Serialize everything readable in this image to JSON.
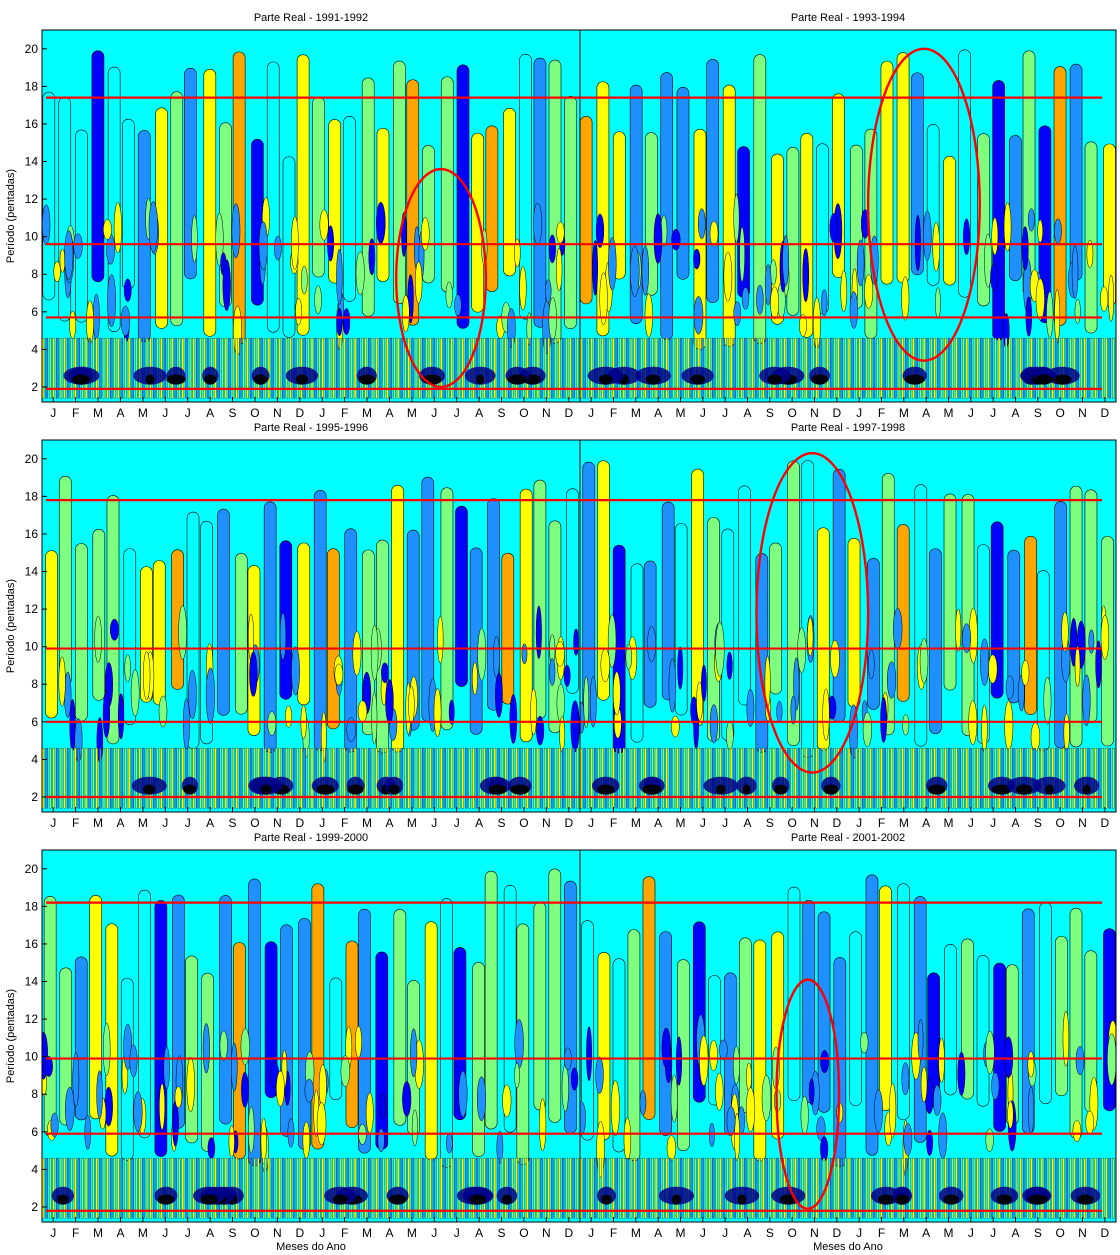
{
  "figure": {
    "xlabel": "Meses do Ano",
    "ylabel": "Período (pentadas)"
  },
  "colors": {
    "scale": [
      "#00008B",
      "#0000FF",
      "#1E90FF",
      "#00FFFF",
      "#7FFF7F",
      "#FFFF00",
      "#FFA500",
      "#FF0000",
      "#8B0000"
    ],
    "contour": "#000000",
    "annotation": "#FF0000"
  },
  "chart_data": [
    {
      "type": "heatmap",
      "title": "Parte Real - 1991-1992",
      "ylabel": "Período (pentadas)",
      "xlabel": "",
      "x_ticks": [
        "J",
        "F",
        "M",
        "A",
        "M",
        "J",
        "J",
        "A",
        "S",
        "O",
        "N",
        "D",
        "J",
        "F",
        "M",
        "A",
        "M",
        "J",
        "J",
        "A",
        "S",
        "O",
        "N",
        "D"
      ],
      "y_ticks": [
        2,
        4,
        6,
        8,
        10,
        12,
        14,
        16,
        18,
        20
      ],
      "ylim": [
        1.2,
        21
      ],
      "hlines": [
        1.9,
        5.7,
        9.6,
        17.4
      ],
      "ellipse": {
        "x_center": 17.3,
        "y_center": 7.8,
        "x_halfwidth": 2.0,
        "y_halfwidth": 5.8
      }
    },
    {
      "type": "heatmap",
      "title": "Parte Real - 1993-1994",
      "ylabel": "",
      "xlabel": "",
      "x_ticks": [
        "J",
        "F",
        "M",
        "A",
        "M",
        "J",
        "J",
        "A",
        "S",
        "O",
        "N",
        "D",
        "J",
        "F",
        "M",
        "A",
        "M",
        "J",
        "J",
        "A",
        "S",
        "O",
        "N",
        "D"
      ],
      "y_ticks": [],
      "ylim": [
        1.2,
        21
      ],
      "hlines": [
        1.9,
        5.7,
        9.6,
        17.4
      ],
      "ellipse": {
        "x_center": 14.9,
        "y_center": 11.7,
        "x_halfwidth": 2.5,
        "y_halfwidth": 8.3
      }
    },
    {
      "type": "heatmap",
      "title": "Parte Real - 1995-1996",
      "ylabel": "Período (pentadas)",
      "xlabel": "",
      "x_ticks": [
        "J",
        "F",
        "M",
        "A",
        "M",
        "J",
        "J",
        "A",
        "S",
        "O",
        "N",
        "D",
        "J",
        "F",
        "M",
        "A",
        "M",
        "J",
        "J",
        "A",
        "S",
        "O",
        "N",
        "D"
      ],
      "y_ticks": [
        2,
        4,
        6,
        8,
        10,
        12,
        14,
        16,
        18,
        20
      ],
      "ylim": [
        1.2,
        21
      ],
      "hlines": [
        2.0,
        6.0,
        9.9,
        17.8
      ],
      "ellipse": null
    },
    {
      "type": "heatmap",
      "title": "Parte Real - 1997-1998",
      "ylabel": "",
      "xlabel": "",
      "x_ticks": [
        "J",
        "F",
        "M",
        "A",
        "M",
        "J",
        "J",
        "A",
        "S",
        "O",
        "N",
        "D",
        "J",
        "F",
        "M",
        "A",
        "M",
        "J",
        "J",
        "A",
        "S",
        "O",
        "N",
        "D"
      ],
      "y_ticks": [],
      "ylim": [
        1.2,
        21
      ],
      "hlines": [
        2.0,
        6.0,
        9.9,
        17.8
      ],
      "ellipse": {
        "x_center": 9.9,
        "y_center": 11.8,
        "x_halfwidth": 2.5,
        "y_halfwidth": 8.5
      }
    },
    {
      "type": "heatmap",
      "title": "Parte Real - 1999-2000",
      "ylabel": "Período (pentadas)",
      "xlabel": "Meses do Ano",
      "x_ticks": [
        "J",
        "F",
        "M",
        "A",
        "M",
        "J",
        "J",
        "A",
        "S",
        "O",
        "N",
        "D",
        "J",
        "F",
        "M",
        "A",
        "M",
        "J",
        "J",
        "A",
        "S",
        "O",
        "N",
        "D"
      ],
      "y_ticks": [
        2,
        4,
        6,
        8,
        10,
        12,
        14,
        16,
        18,
        20
      ],
      "ylim": [
        1.2,
        21
      ],
      "hlines": [
        1.8,
        5.9,
        9.9,
        18.2
      ],
      "ellipse": null
    },
    {
      "type": "heatmap",
      "title": "Parte Real - 2001-2002",
      "ylabel": "",
      "xlabel": "Meses do Ano",
      "x_ticks": [
        "J",
        "F",
        "M",
        "A",
        "M",
        "J",
        "J",
        "A",
        "S",
        "O",
        "N",
        "D",
        "J",
        "F",
        "M",
        "A",
        "M",
        "J",
        "J",
        "A",
        "S",
        "O",
        "N",
        "D"
      ],
      "y_ticks": [],
      "ylim": [
        1.2,
        21
      ],
      "hlines": [
        1.8,
        5.9,
        9.9,
        18.2
      ],
      "ellipse": {
        "x_center": 9.7,
        "y_center": 8.0,
        "x_halfwidth": 1.4,
        "y_halfwidth": 6.1
      }
    }
  ]
}
